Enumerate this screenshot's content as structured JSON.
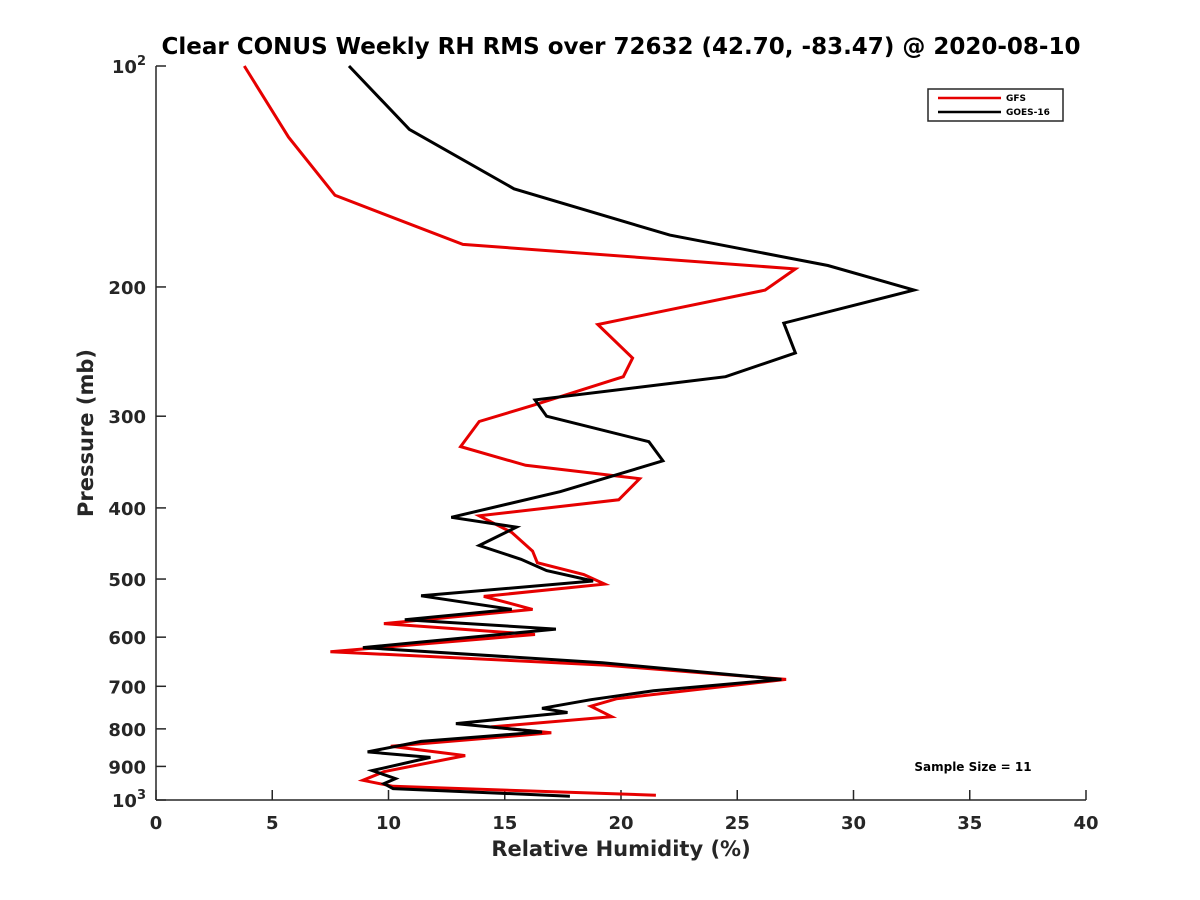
{
  "chart_data": {
    "type": "line",
    "title": "Clear CONUS Weekly RH RMS over 72632 (42.70, -83.47) @ 2020-08-10",
    "xlabel": "Relative Humidity (%)",
    "ylabel": "Pressure (mb)",
    "xlim": [
      0,
      40
    ],
    "ylim": [
      100,
      1000
    ],
    "y_scale": "log",
    "y_reversed": true,
    "grid": false,
    "legend_position": "top-right",
    "x_ticks": [
      0,
      5,
      10,
      15,
      20,
      25,
      30,
      35,
      40
    ],
    "y_ticks": [
      {
        "value": 100,
        "base": "10",
        "exp": "2"
      },
      {
        "value": 200,
        "label": "200"
      },
      {
        "value": 300,
        "label": "300"
      },
      {
        "value": 400,
        "label": "400"
      },
      {
        "value": 500,
        "label": "500"
      },
      {
        "value": 600,
        "label": "600"
      },
      {
        "value": 700,
        "label": "700"
      },
      {
        "value": 800,
        "label": "800"
      },
      {
        "value": 900,
        "label": "900"
      },
      {
        "value": 1000,
        "base": "10",
        "exp": "3"
      }
    ],
    "series": [
      {
        "name": "GFS",
        "color": "#e60000",
        "points": [
          [
            3.8,
            100
          ],
          [
            5.7,
            125
          ],
          [
            7.7,
            150
          ],
          [
            13.2,
            175
          ],
          [
            27.5,
            189
          ],
          [
            26.2,
            202
          ],
          [
            19.0,
            225
          ],
          [
            20.5,
            250
          ],
          [
            20.1,
            265
          ],
          [
            16.2,
            290
          ],
          [
            13.9,
            305
          ],
          [
            13.1,
            330
          ],
          [
            15.9,
            350
          ],
          [
            20.8,
            365
          ],
          [
            19.9,
            390
          ],
          [
            13.9,
            410
          ],
          [
            15.3,
            432
          ],
          [
            16.2,
            458
          ],
          [
            16.4,
            475
          ],
          [
            18.4,
            493
          ],
          [
            19.3,
            508
          ],
          [
            14.1,
            528
          ],
          [
            16.2,
            550
          ],
          [
            9.8,
            575
          ],
          [
            16.3,
            595
          ],
          [
            7.5,
            628
          ],
          [
            19.3,
            655
          ],
          [
            27.1,
            685
          ],
          [
            19.8,
            728
          ],
          [
            18.7,
            745
          ],
          [
            19.6,
            770
          ],
          [
            14.4,
            795
          ],
          [
            17.0,
            810
          ],
          [
            10.1,
            845
          ],
          [
            13.3,
            870
          ],
          [
            9.8,
            915
          ],
          [
            8.9,
            940
          ],
          [
            10.2,
            958
          ],
          [
            21.5,
            985
          ]
        ]
      },
      {
        "name": "GOES-16",
        "color": "#000000",
        "points": [
          [
            8.3,
            100
          ],
          [
            10.9,
            122
          ],
          [
            15.4,
            147
          ],
          [
            22.1,
            170
          ],
          [
            28.9,
            187
          ],
          [
            32.6,
            202
          ],
          [
            27.0,
            224
          ],
          [
            27.5,
            246
          ],
          [
            24.5,
            265
          ],
          [
            16.3,
            285
          ],
          [
            16.8,
            300
          ],
          [
            21.2,
            325
          ],
          [
            21.8,
            345
          ],
          [
            17.4,
            380
          ],
          [
            12.7,
            412
          ],
          [
            15.5,
            425
          ],
          [
            13.9,
            450
          ],
          [
            15.7,
            470
          ],
          [
            16.8,
            487
          ],
          [
            18.8,
            503
          ],
          [
            11.4,
            527
          ],
          [
            15.3,
            550
          ],
          [
            10.7,
            568
          ],
          [
            17.2,
            585
          ],
          [
            8.9,
            620
          ],
          [
            19.2,
            650
          ],
          [
            26.9,
            685
          ],
          [
            21.4,
            710
          ],
          [
            18.7,
            730
          ],
          [
            16.6,
            750
          ],
          [
            17.7,
            760
          ],
          [
            12.9,
            787
          ],
          [
            16.6,
            808
          ],
          [
            11.4,
            832
          ],
          [
            9.1,
            860
          ],
          [
            11.8,
            875
          ],
          [
            9.3,
            912
          ],
          [
            10.3,
            935
          ],
          [
            9.8,
            950
          ],
          [
            10.2,
            965
          ],
          [
            17.8,
            988
          ]
        ]
      }
    ],
    "annotations": [
      {
        "text": "Sample Size = 11"
      }
    ]
  }
}
